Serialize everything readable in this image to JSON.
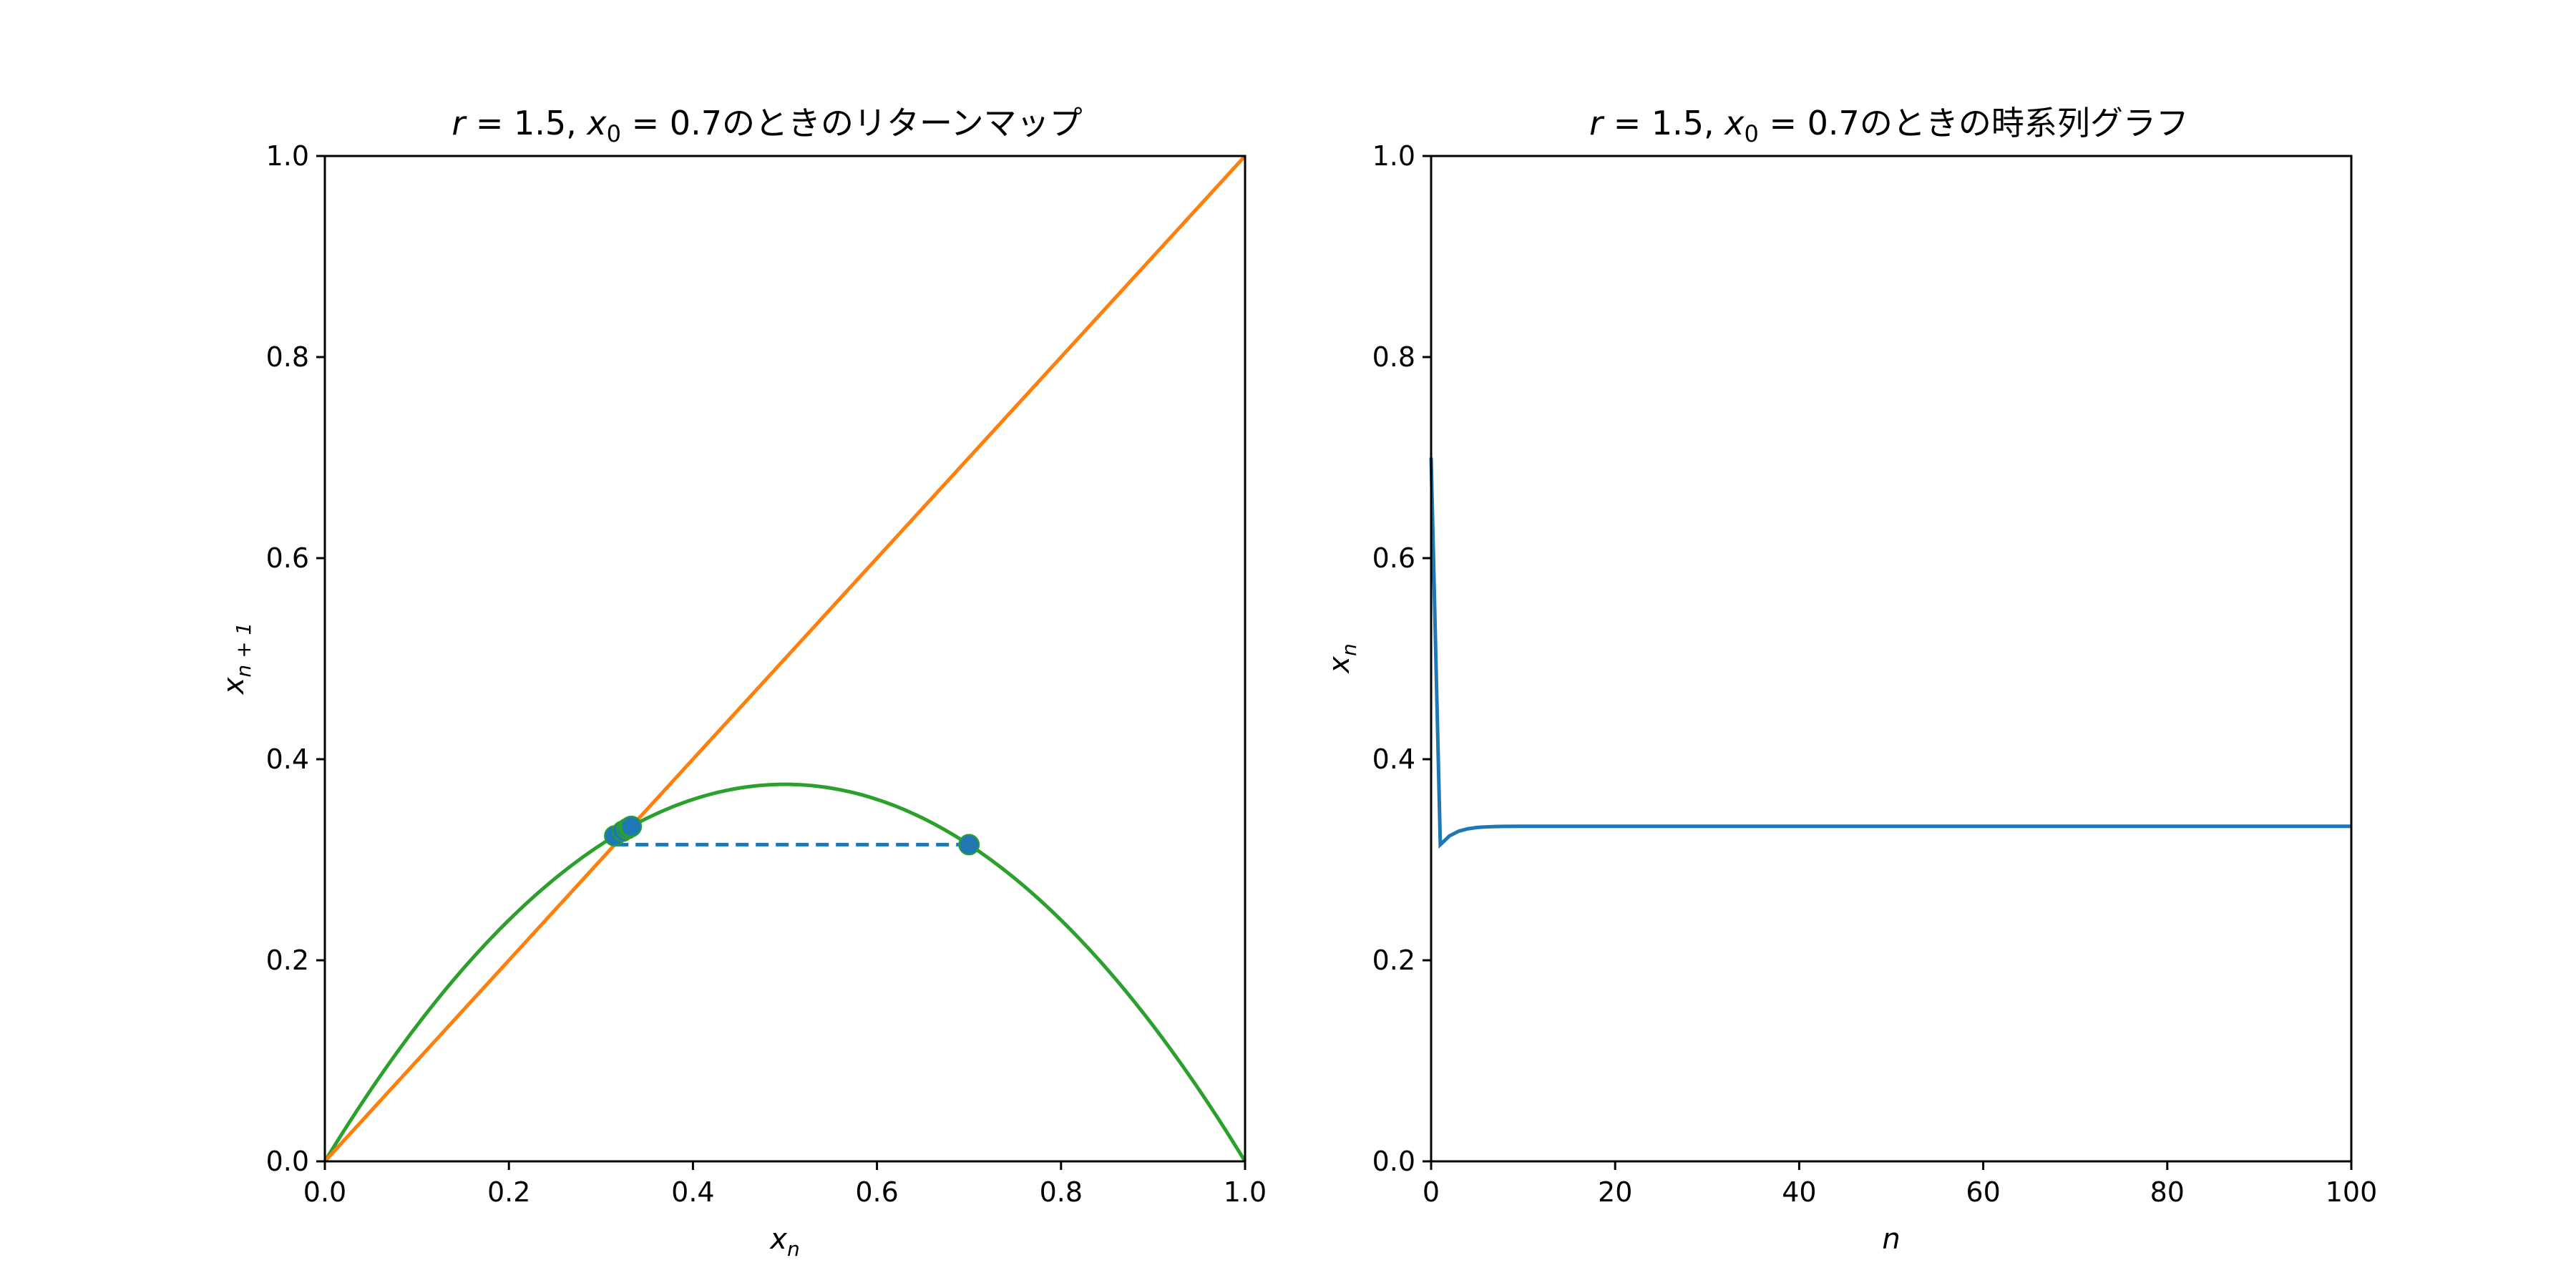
{
  "chart_data": [
    {
      "type": "line",
      "title_parts": {
        "r": "r",
        "eq1": " = 1.5, ",
        "x": "x",
        "sub0": "0",
        "eq2": " = 0.7",
        "suffix": "のときのリターンマップ"
      },
      "xlabel": {
        "base": "x",
        "sub": "n"
      },
      "ylabel": {
        "base": "x",
        "sub": "n + 1"
      },
      "xlim": [
        0,
        1
      ],
      "ylim": [
        0,
        1
      ],
      "xticks": [
        "0.0",
        "0.2",
        "0.4",
        "0.6",
        "0.8",
        "1.0"
      ],
      "yticks": [
        "0.0",
        "0.2",
        "0.4",
        "0.6",
        "0.8",
        "1.0"
      ],
      "grid": false,
      "r": 1.5,
      "x0": 0.7,
      "colors": {
        "logistic": "#2ca02c",
        "diagonal": "#ff7f0e",
        "cobweb": "#1f77b4"
      },
      "series": [
        {
          "kind": "logistic_curve",
          "equation": "1.5 x (1 - x)"
        },
        {
          "kind": "identity_line",
          "x": [
            0,
            1
          ],
          "y": [
            0,
            1
          ]
        },
        {
          "kind": "cobweb_path",
          "style": "dashed",
          "x": [
            0.7,
            0.315,
            0.315,
            0.3237,
            0.3237,
            0.3284,
            0.3284,
            0.3308,
            0.3308,
            0.3321,
            0.3321,
            0.3327,
            0.3327,
            0.333
          ],
          "y": [
            0.315,
            0.315,
            0.3237,
            0.3237,
            0.3284,
            0.3284,
            0.3308,
            0.3308,
            0.3321,
            0.3321,
            0.3327,
            0.3327,
            0.333,
            0.333
          ]
        },
        {
          "kind": "cobweb_points",
          "x": [
            0.7,
            0.315,
            0.3237,
            0.3284,
            0.3308,
            0.3321,
            0.3327,
            0.333
          ],
          "y": [
            0.315,
            0.3237,
            0.3284,
            0.3308,
            0.3321,
            0.3327,
            0.333,
            0.3332
          ]
        }
      ]
    },
    {
      "type": "line",
      "title_parts": {
        "r": "r",
        "eq1": " = 1.5, ",
        "x": "x",
        "sub0": "0",
        "eq2": " = 0.7",
        "suffix": "のときの時系列グラフ"
      },
      "xlabel": {
        "base": "n",
        "sub": ""
      },
      "ylabel": {
        "base": "x",
        "sub": "n"
      },
      "xlim": [
        0,
        100
      ],
      "ylim": [
        0,
        1
      ],
      "xticks": [
        "0",
        "20",
        "40",
        "60",
        "80",
        "100"
      ],
      "yticks": [
        "0.0",
        "0.2",
        "0.4",
        "0.6",
        "0.8",
        "1.0"
      ],
      "grid": false,
      "colors": {
        "series": "#1f77b4"
      },
      "series": [
        {
          "kind": "time_series",
          "x": [
            0,
            1,
            2,
            3,
            4,
            5,
            6,
            7,
            8,
            10,
            15,
            20,
            40,
            60,
            80,
            100
          ],
          "y": [
            0.7,
            0.315,
            0.3237,
            0.3284,
            0.3308,
            0.3321,
            0.3327,
            0.333,
            0.3332,
            0.3333,
            0.3333,
            0.3333,
            0.3333,
            0.3333,
            0.3333,
            0.3333
          ]
        }
      ]
    }
  ]
}
